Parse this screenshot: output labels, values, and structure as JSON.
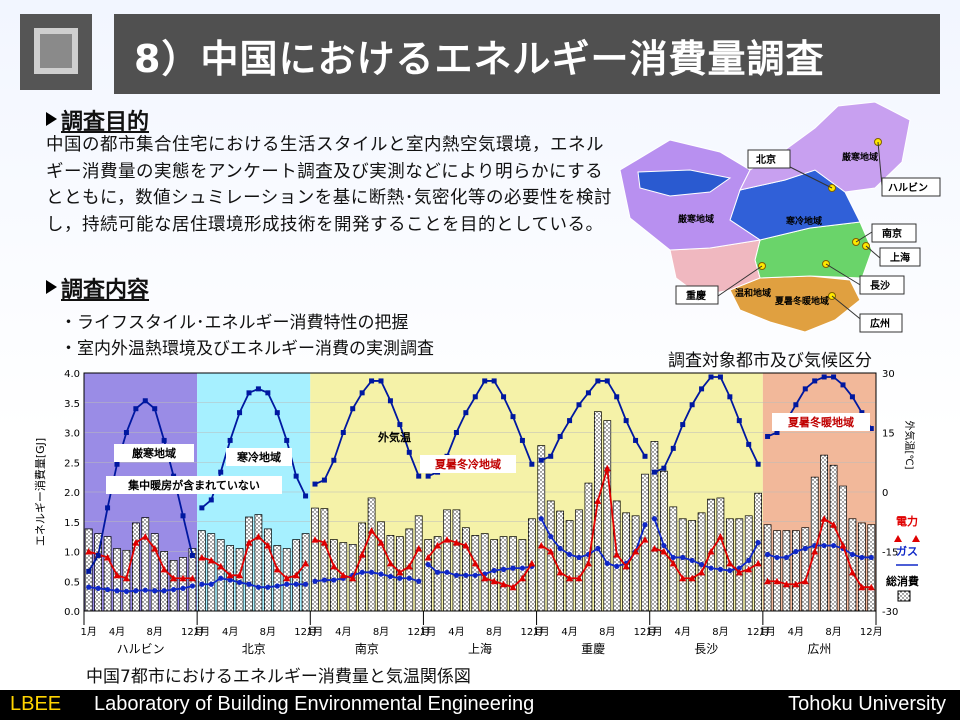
{
  "title": "8）中国におけるエネルギー消費量調査",
  "purpose": {
    "heading": "調査目的",
    "text": "中国の都市集合住宅における生活スタイルと室内熱空気環境，エネルギー消費量の実態をアンケート調査及び実測などにより明らかにするとともに，数値シュミレーションを基に断熱･気密化等の必要性を検討し，持続可能な居住環境形成技術を開発することを目的としている。"
  },
  "content": {
    "heading": "調査内容",
    "items": [
      "・ライフスタイル･エネルギー消費特性の把握",
      "・室内外温熱環境及びエネルギー消費の実測調査"
    ]
  },
  "map": {
    "caption": "調査対象都市及び気候区分",
    "cities": [
      "北京",
      "ハルビン",
      "南京",
      "上海",
      "長沙",
      "重慶",
      "広州"
    ],
    "zones": {
      "severe_n": "厳寒地域",
      "severe_w": "厳寒地域",
      "cold": "寒冷地域",
      "hsw": "夏暑冬冷地域",
      "mild": "温和地域",
      "hsww": "夏暑冬暖地域"
    }
  },
  "chart_caption": "中国7都市におけるエネルギー消費量と気温関係図",
  "footer": {
    "lab_short": "LBEE",
    "lab_full": "Laboratory of Building Environmental Engineering",
    "univ": "Tohoku University"
  },
  "colors": {
    "header": "#505050",
    "zone_severe": "#9a8ce6",
    "zone_cold": "#a6f0ff",
    "zone_hscw": "#f5f2a8",
    "zone_hsww": "#f2b89a",
    "electric": "#e00000",
    "gas": "#1028c8",
    "outdoor": "#0018a0"
  },
  "chart_data": {
    "type": "bar",
    "ylabel": "エネルギー消費量[GJ]",
    "y2label": "外気温[℃]",
    "ylim": [
      0,
      4.0
    ],
    "y2lim": [
      -30,
      30
    ],
    "yticks": [
      "0.0",
      "0.5",
      "1.0",
      "1.5",
      "2.0",
      "2.5",
      "3.0",
      "3.5",
      "4.0"
    ],
    "y2ticks": [
      "30",
      "15",
      "0",
      "-15",
      "-30"
    ],
    "xticks_month": [
      "1月",
      "4月",
      "8月",
      "12月"
    ],
    "legend": {
      "electric": "電力",
      "gas": "ガス",
      "total": "総消費"
    },
    "annotations": {
      "severe": "厳寒地域",
      "cold": "寒冷地域",
      "hscw": "夏暑冬冷地域",
      "hsww": "夏暑冬暖地域",
      "outdoor": "外気温",
      "note": "集中暖房が含まれていない"
    },
    "cities": [
      {
        "name": "ハルビン",
        "zone": "severe",
        "total": [
          1.38,
          1.3,
          1.25,
          1.05,
          1.02,
          1.48,
          1.57,
          1.3,
          1.0,
          0.85,
          0.9,
          1.05
        ],
        "electric": [
          1.0,
          0.95,
          0.9,
          0.6,
          0.55,
          1.15,
          1.25,
          1.05,
          0.7,
          0.55,
          0.55,
          0.55
        ],
        "gas": [
          0.4,
          0.38,
          0.36,
          0.34,
          0.33,
          0.34,
          0.35,
          0.34,
          0.34,
          0.36,
          0.38,
          0.42
        ],
        "temp": [
          -20,
          -16,
          -4,
          7,
          15,
          21,
          23,
          21,
          13,
          4,
          -6,
          -16
        ]
      },
      {
        "name": "北京",
        "zone": "cold",
        "total": [
          1.35,
          1.3,
          1.2,
          1.1,
          1.05,
          1.58,
          1.62,
          1.38,
          1.1,
          1.05,
          1.2,
          1.3
        ],
        "electric": [
          0.9,
          0.85,
          0.75,
          0.6,
          0.6,
          1.15,
          1.25,
          1.1,
          0.7,
          0.55,
          0.6,
          0.8
        ],
        "gas": [
          0.45,
          0.45,
          0.55,
          0.52,
          0.48,
          0.45,
          0.4,
          0.4,
          0.42,
          0.45,
          0.45,
          0.45
        ],
        "temp": [
          -4,
          -2,
          5,
          13,
          20,
          25,
          26,
          25,
          20,
          13,
          4,
          -1
        ]
      },
      {
        "name": "南京",
        "zone": "hscw",
        "total": [
          1.73,
          1.72,
          1.2,
          1.15,
          1.12,
          1.48,
          1.9,
          1.5,
          1.27,
          1.25,
          1.38,
          1.6
        ],
        "electric": [
          1.2,
          1.15,
          0.75,
          0.6,
          0.55,
          0.95,
          1.35,
          1.15,
          0.8,
          0.65,
          0.75,
          1.05
        ],
        "gas": [
          0.5,
          0.52,
          0.52,
          0.55,
          0.6,
          0.65,
          0.65,
          0.62,
          0.58,
          0.55,
          0.55,
          0.5
        ],
        "temp": [
          2,
          3,
          8,
          15,
          21,
          25,
          28,
          28,
          23,
          17,
          10,
          4
        ]
      },
      {
        "name": "上海",
        "zone": "hscw",
        "total": [
          1.2,
          1.25,
          1.7,
          1.7,
          1.4,
          1.27,
          1.3,
          1.2,
          1.25,
          1.25,
          1.2,
          1.55
        ],
        "electric": [
          0.9,
          1.1,
          1.2,
          1.15,
          1.1,
          0.8,
          0.55,
          0.5,
          0.45,
          0.4,
          0.55,
          0.8
        ],
        "gas": [
          0.78,
          0.65,
          0.65,
          0.6,
          0.6,
          0.6,
          0.62,
          0.68,
          0.7,
          0.72,
          0.72,
          0.75
        ],
        "temp": [
          4,
          5,
          9,
          15,
          20,
          24,
          28,
          28,
          24,
          19,
          13,
          7
        ]
      },
      {
        "name": "重慶",
        "zone": "hscw",
        "total": [
          2.78,
          1.85,
          1.68,
          1.52,
          1.7,
          2.15,
          3.35,
          3.2,
          1.85,
          1.65,
          1.6,
          2.3
        ],
        "electric": [
          1.1,
          1.0,
          0.65,
          0.55,
          0.55,
          0.8,
          1.85,
          2.4,
          0.95,
          0.75,
          1.0,
          1.2
        ],
        "gas": [
          1.55,
          1.25,
          1.05,
          0.95,
          0.9,
          0.95,
          1.05,
          0.8,
          0.75,
          0.8,
          1.0,
          1.45
        ],
        "temp": [
          8,
          9,
          14,
          18,
          22,
          25,
          28,
          28,
          24,
          18,
          13,
          9
        ]
      },
      {
        "name": "長沙",
        "zone": "hscw",
        "total": [
          2.85,
          2.35,
          1.75,
          1.55,
          1.52,
          1.65,
          1.88,
          1.9,
          1.55,
          1.55,
          1.6,
          1.98
        ],
        "electric": [
          1.05,
          1.0,
          0.8,
          0.55,
          0.55,
          0.65,
          1.0,
          1.25,
          0.8,
          0.65,
          0.7,
          0.8
        ],
        "gas": [
          1.55,
          1.1,
          0.9,
          0.9,
          0.85,
          0.78,
          0.72,
          0.7,
          0.68,
          0.72,
          0.85,
          1.15
        ],
        "temp": [
          5,
          6,
          11,
          17,
          22,
          26,
          29,
          29,
          24,
          18,
          12,
          7
        ]
      },
      {
        "name": "広州",
        "zone": "hsww",
        "total": [
          1.45,
          1.35,
          1.35,
          1.35,
          1.4,
          2.25,
          2.62,
          2.45,
          2.1,
          1.55,
          1.48,
          1.45
        ],
        "electric": [
          0.5,
          0.5,
          0.45,
          0.45,
          0.5,
          1.0,
          1.55,
          1.45,
          1.1,
          0.65,
          0.4,
          0.4
        ],
        "gas": [
          0.95,
          0.9,
          0.9,
          1.0,
          1.05,
          1.1,
          1.1,
          1.1,
          1.05,
          0.95,
          0.9,
          0.9
        ],
        "temp": [
          14,
          15,
          18,
          22,
          26,
          28,
          29,
          29,
          27,
          24,
          20,
          16
        ]
      }
    ]
  }
}
